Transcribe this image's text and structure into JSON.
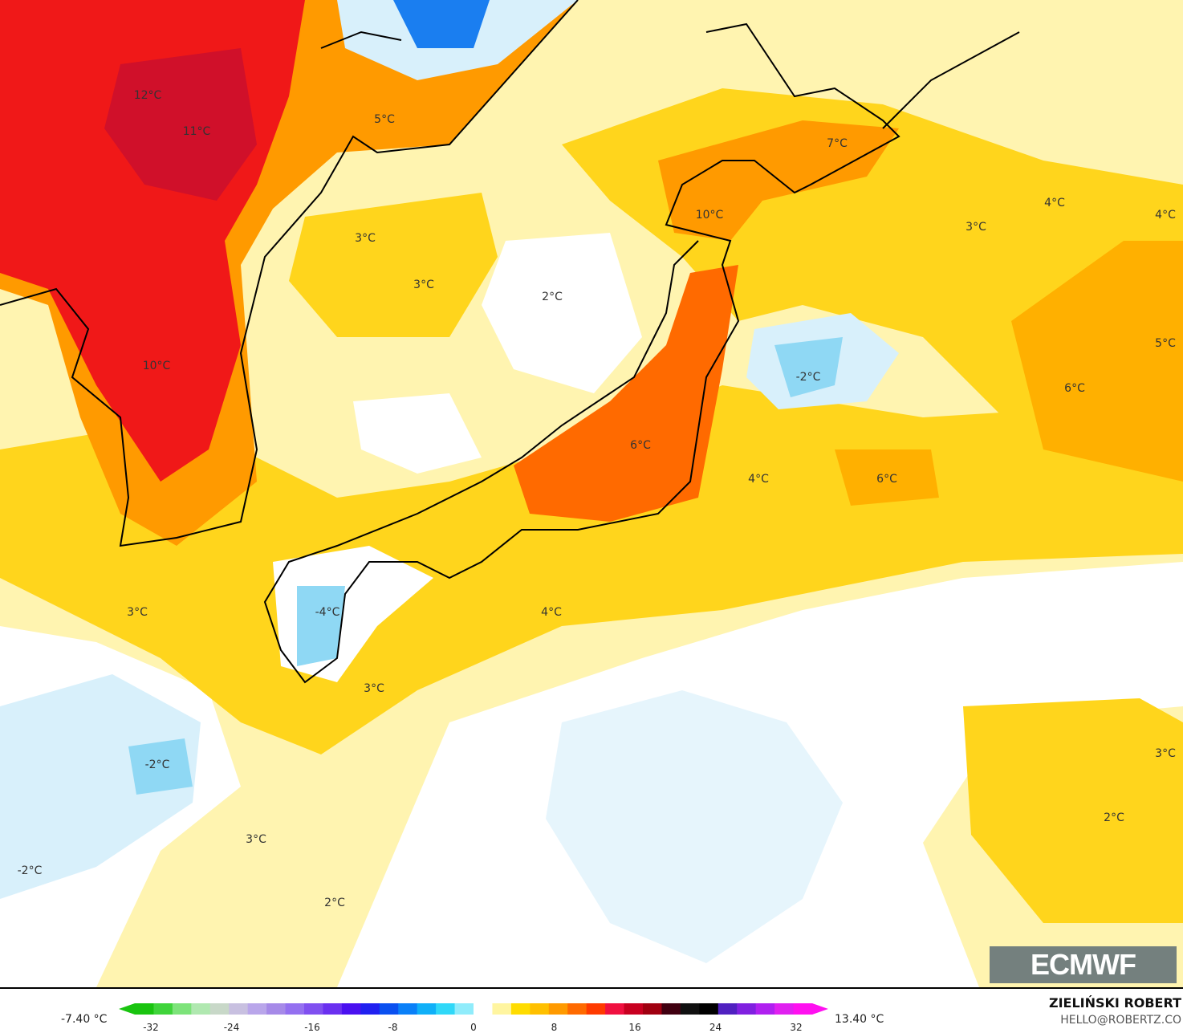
{
  "map": {
    "variable": "temperature anomaly",
    "colors": {
      "white": "#ffffff",
      "light_yellow": "#fff4b0",
      "yellow": "#ffd51c",
      "orange": "#ff9a00",
      "dark_orange": "#ff6a00",
      "red": "#f01818",
      "light_blue": "#d8f0fb",
      "blue": "#8fd8f4",
      "deep_blue": "#1a7ef0"
    },
    "labels": [
      "12°C",
      "11°C",
      "5°C",
      "7°C",
      "10°C",
      "4°C",
      "4°C",
      "3°C",
      "3°C",
      "3°C",
      "2°C",
      "10°C",
      "-2°C",
      "5°C",
      "6°C",
      "6°C",
      "4°C",
      "6°C",
      "3°C",
      "-4°C",
      "4°C",
      "3°C",
      "-2°C",
      "3°C",
      "2°C",
      "3°C",
      "-2°C",
      "2°C"
    ]
  },
  "logo": {
    "text": "ECMWF"
  },
  "colorbar": {
    "min_label": "-7.40 °C",
    "max_label": "13.40 °C",
    "ticks": [
      "-32",
      "-24",
      "-16",
      "-8",
      "0",
      "8",
      "16",
      "24",
      "32"
    ],
    "colors": [
      "#19c40f",
      "#3fd43a",
      "#7de37a",
      "#b0e8b0",
      "#c8d8c8",
      "#c8c0e0",
      "#b9a6ea",
      "#a68ae8",
      "#9470f0",
      "#8050f0",
      "#6a30f0",
      "#4a10f0",
      "#2020f0",
      "#0a50f0",
      "#0a80f8",
      "#10b0f8",
      "#30d8f8",
      "#90ecfb",
      "#ffffff",
      "#fff5a0",
      "#ffdc00",
      "#ffc000",
      "#ff9a00",
      "#ff6a00",
      "#ff3a00",
      "#f01040",
      "#c80020",
      "#a00010",
      "#400010",
      "#101010",
      "#000000",
      "#5020c0",
      "#8020e0",
      "#b020f0",
      "#e020f0",
      "#ff10f0"
    ]
  },
  "credits": {
    "author": "ZIELIŃSKI ROBERT",
    "email": "HELLO@ROBERTZ.CO"
  }
}
